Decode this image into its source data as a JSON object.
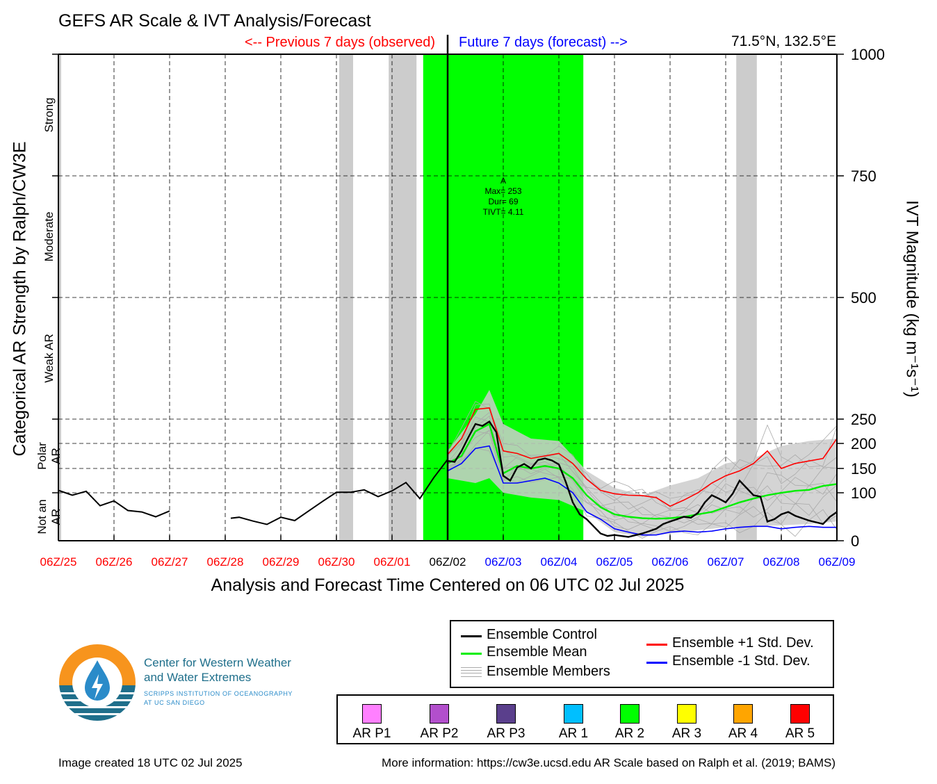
{
  "header": {
    "title": "GEFS AR Scale & IVT Analysis/Forecast",
    "previous_label": "<-- Previous 7 days (observed)",
    "future_label": "Future 7 days (forecast) -->",
    "location": "71.5°N, 132.5°E"
  },
  "axes": {
    "x_title": "Analysis and Forecast Time Centered on 06 UTC 02 Jul 2025",
    "left_title": "Categorical AR Strength by Ralph/CW3E",
    "right_title": "IVT Magnitude (kg m⁻¹s⁻¹)",
    "categories": [
      {
        "label": "Strong",
        "center": 875
      },
      {
        "label": "Moderate",
        "center": 625
      },
      {
        "label": "Weak AR",
        "center": 375
      },
      {
        "label": "Polar AR",
        "center": 175
      },
      {
        "label": "Not an AR",
        "center": 50
      }
    ]
  },
  "colors": {
    "observed": "#ff0000",
    "forecast": "#0000ff",
    "center": "#000000",
    "ar_band": "#00ff00",
    "missing": "#cccccc",
    "control": "#000000",
    "mean": "#00ee00",
    "plus_std": "#ff0000",
    "minus_std": "#0000ff",
    "members": "#aaaaaa"
  },
  "annotation": {
    "marker": "A",
    "lines": [
      "Max= 253",
      "Dur= 69",
      "TIVT= 4.11"
    ]
  },
  "chart_data": {
    "type": "line",
    "x_unit": "days relative to 06Z/02 Jul 2025",
    "xlim": [
      -7,
      7
    ],
    "ylim": [
      0,
      1000
    ],
    "y_ticks": [
      0,
      100,
      150,
      200,
      250,
      500,
      750,
      1000
    ],
    "x_ticks": [
      {
        "x": -7,
        "label": "06Z/25",
        "kind": "observed"
      },
      {
        "x": -6,
        "label": "06Z/26",
        "kind": "observed"
      },
      {
        "x": -5,
        "label": "06Z/27",
        "kind": "observed"
      },
      {
        "x": -4,
        "label": "06Z/28",
        "kind": "observed"
      },
      {
        "x": -3,
        "label": "06Z/29",
        "kind": "observed"
      },
      {
        "x": -2,
        "label": "06Z/30",
        "kind": "observed"
      },
      {
        "x": -1,
        "label": "06Z/01",
        "kind": "observed"
      },
      {
        "x": 0,
        "label": "06Z/02",
        "kind": "center"
      },
      {
        "x": 1,
        "label": "06Z/03",
        "kind": "forecast"
      },
      {
        "x": 2,
        "label": "06Z/04",
        "kind": "forecast"
      },
      {
        "x": 3,
        "label": "06Z/05",
        "kind": "forecast"
      },
      {
        "x": 4,
        "label": "06Z/06",
        "kind": "forecast"
      },
      {
        "x": 5,
        "label": "06Z/07",
        "kind": "forecast"
      },
      {
        "x": 6,
        "label": "06Z/08",
        "kind": "forecast"
      },
      {
        "x": 7,
        "label": "06Z/09",
        "kind": "forecast"
      }
    ],
    "missing_periods": [
      [
        -7,
        -6.95
      ],
      [
        -1.95,
        -1.7
      ],
      [
        -1.06,
        -0.56
      ],
      [
        5.19,
        5.56
      ]
    ],
    "ar_periods": [
      {
        "start": -0.44,
        "end": 2.44,
        "category": "AR 2"
      }
    ],
    "observed_ivt": [
      {
        "x": [
          -7,
          -6.75,
          -6.5,
          -6.25,
          -6.0,
          -5.75,
          -5.5,
          -5.25,
          -5.0
        ],
        "y": [
          105,
          95,
          103,
          73,
          83,
          63,
          60,
          50,
          62
        ]
      },
      {
        "x": [
          -3.9,
          -3.75,
          -3.5,
          -3.25,
          -3.0,
          -2.75,
          -2.5,
          -2.25,
          -2.0,
          -1.75,
          -1.5,
          -1.25,
          -1.0,
          -0.75,
          -0.5,
          -0.25,
          0
        ],
        "y": [
          47,
          49,
          41,
          34,
          49,
          42,
          62,
          82,
          101,
          101,
          106,
          92,
          104,
          121,
          88,
          131,
          168
        ]
      }
    ],
    "forecast_band": {
      "x": [
        0,
        0.5,
        0.75,
        1,
        1.5,
        2,
        2.5,
        3,
        3.5,
        4,
        4.5,
        5,
        5.5,
        6,
        6.5,
        7
      ],
      "upper": [
        185,
        260,
        310,
        240,
        210,
        205,
        145,
        110,
        95,
        115,
        130,
        160,
        170,
        195,
        205,
        210
      ],
      "lower": [
        130,
        120,
        130,
        100,
        90,
        85,
        60,
        18,
        8,
        15,
        22,
        28,
        30,
        32,
        35,
        40
      ]
    },
    "series": [
      {
        "name": "Ensemble Control",
        "color": "#000000",
        "x": [
          0,
          0.125,
          0.25,
          0.375,
          0.5,
          0.625,
          0.75,
          0.875,
          1,
          1.125,
          1.25,
          1.375,
          1.5,
          1.625,
          1.75,
          1.875,
          2,
          2.125,
          2.25,
          2.375,
          2.5,
          2.625,
          2.75,
          2.875,
          3,
          3.25,
          3.5,
          3.625,
          3.75,
          3.875,
          4,
          4.125,
          4.25,
          4.375,
          4.5,
          4.625,
          4.75,
          4.875,
          5,
          5.125,
          5.25,
          5.375,
          5.5,
          5.625,
          5.75,
          5.875,
          6,
          6.125,
          6.25,
          6.5,
          6.75,
          6.875,
          7
        ],
        "y": [
          165,
          163,
          185,
          213,
          240,
          236,
          245,
          223,
          135,
          125,
          152,
          159,
          150,
          167,
          170,
          166,
          158,
          122,
          80,
          55,
          45,
          30,
          15,
          10,
          12,
          8,
          15,
          20,
          25,
          35,
          40,
          45,
          50,
          48,
          58,
          80,
          95,
          88,
          80,
          98,
          125,
          110,
          95,
          92,
          40,
          45,
          55,
          60,
          52,
          42,
          35,
          50,
          60
        ]
      },
      {
        "name": "Ensemble Mean",
        "color": "#00ee00",
        "x": [
          0,
          0.25,
          0.5,
          0.75,
          1,
          1.25,
          1.5,
          1.75,
          2,
          2.25,
          2.5,
          2.75,
          3,
          3.25,
          3.5,
          3.75,
          4,
          4.25,
          4.5,
          4.75,
          5,
          5.25,
          5.5,
          5.75,
          6,
          6.25,
          6.5,
          6.75,
          7
        ],
        "y": [
          160,
          175,
          225,
          240,
          140,
          155,
          150,
          155,
          150,
          130,
          95,
          70,
          55,
          50,
          47,
          46,
          47,
          50,
          55,
          60,
          70,
          80,
          88,
          95,
          100,
          104,
          106,
          114,
          118
        ]
      },
      {
        "name": "Ensemble +1 Std. Dev.",
        "color": "#ff0000",
        "x": [
          0,
          0.25,
          0.5,
          0.75,
          1,
          1.25,
          1.5,
          1.75,
          2,
          2.25,
          2.5,
          2.75,
          3,
          3.25,
          3.5,
          3.75,
          4,
          4.25,
          4.5,
          4.75,
          5,
          5.25,
          5.5,
          5.75,
          6,
          6.25,
          6.5,
          6.75,
          7
        ],
        "y": [
          178,
          210,
          270,
          273,
          185,
          180,
          170,
          175,
          180,
          160,
          128,
          105,
          98,
          95,
          94,
          90,
          72,
          85,
          100,
          120,
          135,
          145,
          160,
          185,
          150,
          160,
          165,
          170,
          210
        ]
      },
      {
        "name": "Ensemble -1 Std. Dev.",
        "color": "#0000ff",
        "x": [
          0,
          0.25,
          0.5,
          0.75,
          1,
          1.25,
          1.5,
          1.75,
          2,
          2.25,
          2.5,
          2.75,
          3,
          3.25,
          3.5,
          3.75,
          4,
          4.25,
          4.5,
          4.75,
          5,
          5.25,
          5.5,
          5.75,
          6,
          6.25,
          6.5,
          6.75,
          7
        ],
        "y": [
          145,
          160,
          190,
          195,
          120,
          120,
          125,
          130,
          120,
          100,
          60,
          45,
          25,
          18,
          12,
          12,
          18,
          20,
          18,
          20,
          25,
          28,
          30,
          30,
          25,
          28,
          30,
          28,
          28
        ]
      }
    ]
  },
  "legend": {
    "items": [
      {
        "name": "Ensemble Control",
        "color": "#000000"
      },
      {
        "name": "Ensemble Mean",
        "color": "#00ee00"
      },
      {
        "name": "Ensemble Members",
        "color": "#aaaaaa"
      },
      {
        "name": "Ensemble +1 Std. Dev.",
        "color": "#ff0000"
      },
      {
        "name": "Ensemble -1 Std. Dev.",
        "color": "#0000ff"
      }
    ]
  },
  "ar_scale": [
    {
      "label": "AR P1",
      "color": "#ff80ff"
    },
    {
      "label": "AR P2",
      "color": "#b24fcc"
    },
    {
      "label": "AR P3",
      "color": "#5a3f8c"
    },
    {
      "label": "AR 1",
      "color": "#00bfff"
    },
    {
      "label": "AR 2",
      "color": "#00ff00"
    },
    {
      "label": "AR 3",
      "color": "#ffff00"
    },
    {
      "label": "AR 4",
      "color": "#ffa500"
    },
    {
      "label": "AR 5",
      "color": "#ff0000"
    }
  ],
  "logo": {
    "line1": "Center for Western Weather",
    "line2": "and Water Extremes",
    "line3": "SCRIPPS INSTITUTION OF OCEANOGRAPHY",
    "line4": "AT UC SAN DIEGO"
  },
  "footer": {
    "created": "Image created 18 UTC 02 Jul 2025",
    "more_info": "More information: https://cw3e.ucsd.edu AR Scale based on Ralph et al. (2019; BAMS)"
  }
}
